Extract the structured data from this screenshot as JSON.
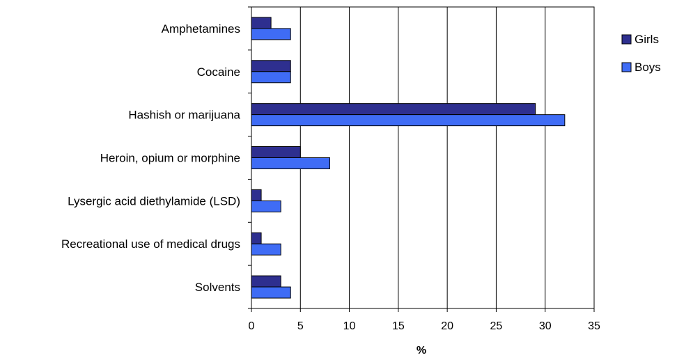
{
  "chart_data": {
    "type": "bar",
    "orientation": "horizontal",
    "categories": [
      "Amphetamines",
      "Cocaine",
      "Hashish or marijuana",
      "Heroin, opium or morphine",
      "Lysergic acid diethylamide (LSD)",
      "Recreational use of medical drugs",
      "Solvents"
    ],
    "series": [
      {
        "name": "Girls",
        "color": "#2e2f8f",
        "values": [
          2,
          4,
          29,
          5,
          1,
          1,
          3
        ]
      },
      {
        "name": "Boys",
        "color": "#3f6cf5",
        "values": [
          4,
          4,
          32,
          8,
          3,
          3,
          4
        ]
      }
    ],
    "xlabel": "%",
    "ylabel": "",
    "title": "",
    "xlim": [
      0,
      35
    ],
    "xticks": [
      "0",
      "5",
      "10",
      "15",
      "20",
      "25",
      "30",
      "35"
    ],
    "grid": "vertical",
    "legend_position": "right"
  }
}
